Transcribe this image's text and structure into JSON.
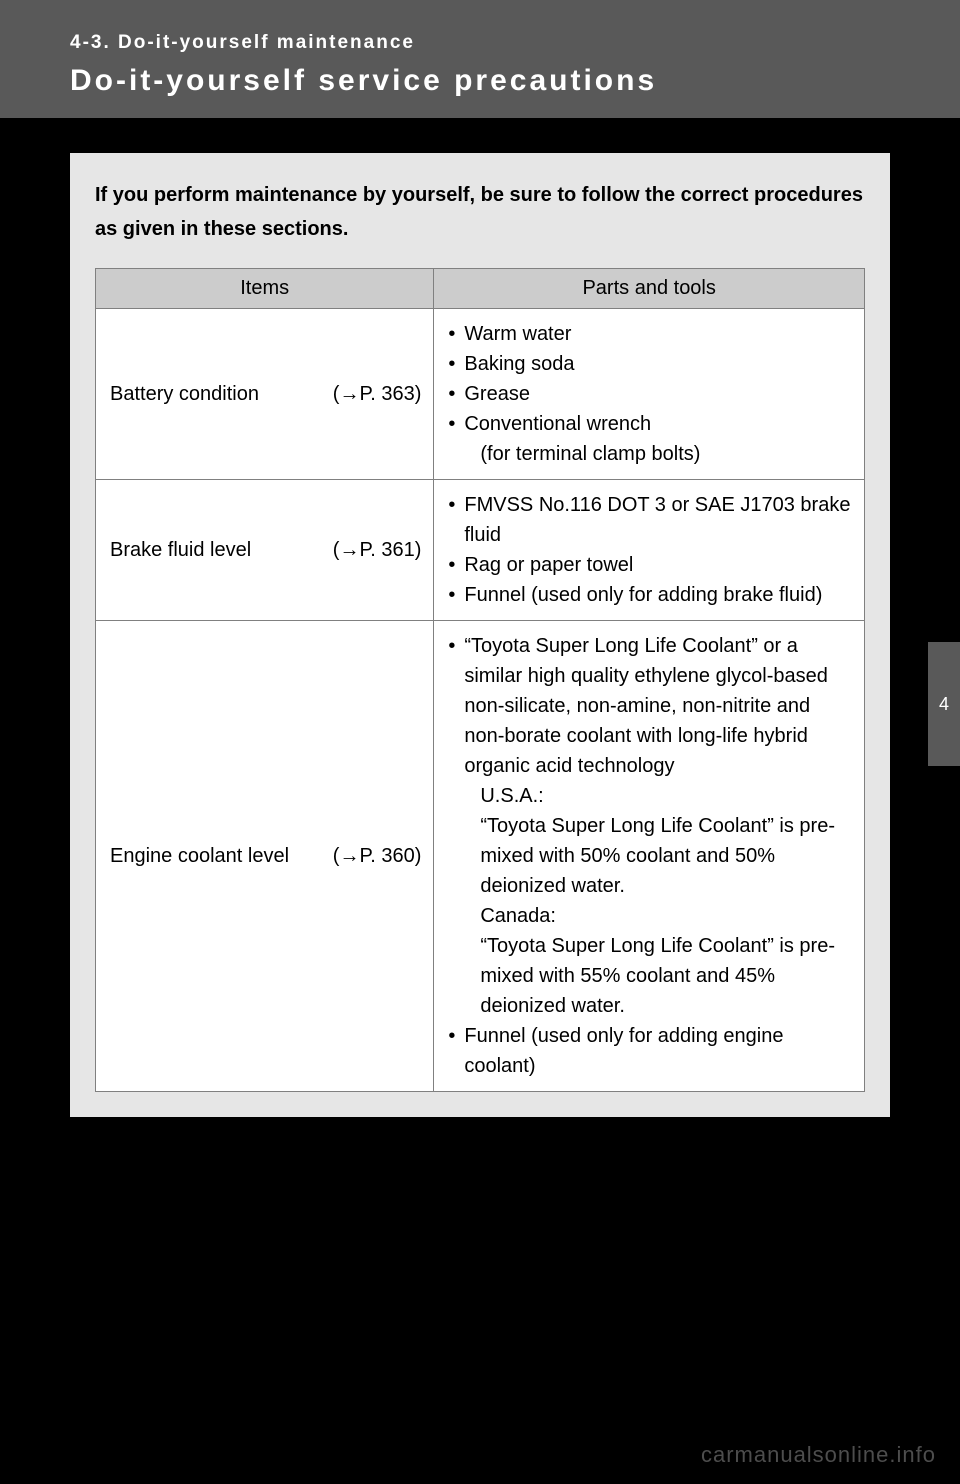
{
  "header": {
    "section_label": "4-3. Do-it-yourself maintenance",
    "title": "Do-it-yourself service precautions"
  },
  "intro": "If you perform maintenance by yourself, be sure to follow the correct procedures as given in these sections.",
  "table": {
    "columns": {
      "items": "Items",
      "tools": "Parts and tools"
    },
    "rows": [
      {
        "item": "Battery condition",
        "pageref_prefix": "(",
        "pageref_page": "P. 363)",
        "tools": [
          {
            "text": "Warm water"
          },
          {
            "text": "Baking soda"
          },
          {
            "text": "Grease"
          },
          {
            "text": "Conventional wrench",
            "sub": "(for terminal clamp bolts)"
          }
        ]
      },
      {
        "item": "Brake fluid level",
        "pageref_prefix": "(",
        "pageref_page": "P. 361)",
        "tools": [
          {
            "text": "FMVSS No.116 DOT 3 or SAE J1703 brake fluid"
          },
          {
            "text": "Rag or paper towel"
          },
          {
            "text": "Funnel (used only for adding brake fluid)"
          }
        ]
      },
      {
        "item": "Engine coolant level",
        "pageref_prefix": "(",
        "pageref_page": "P. 360)",
        "tools": [
          {
            "text": "“Toyota Super Long Life Coolant” or a similar high quality ethylene glycol-based non-silicate, non-amine, non-nitrite and non-borate coolant with long-life hybrid organic acid technology",
            "extra": [
              "U.S.A.:",
              "“Toyota Super Long Life Coolant” is pre-mixed with 50% coolant and 50% deionized water.",
              "Canada:",
              "“Toyota Super Long Life Coolant” is pre-mixed with 55% coolant and 45% deionized water."
            ]
          },
          {
            "text": "Funnel (used only for adding engine coolant)"
          }
        ]
      }
    ]
  },
  "side_tab": "4",
  "watermark": "carmanualsonline.info",
  "glyphs": {
    "arrow": "→"
  }
}
